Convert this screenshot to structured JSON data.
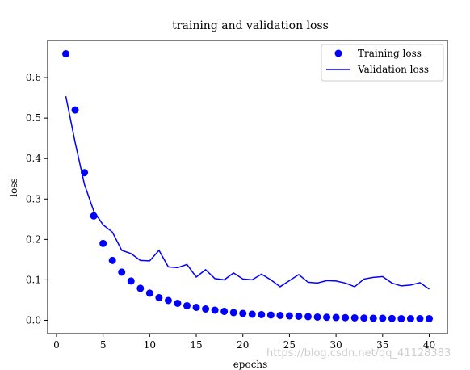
{
  "chart_data": {
    "type": "line",
    "title": "training and validation loss",
    "xlabel": "epochs",
    "ylabel": "loss",
    "xlim": [
      -0.95,
      41.95
    ],
    "ylim": [
      -0.033,
      0.692
    ],
    "x_ticks": [
      0,
      5,
      10,
      15,
      20,
      25,
      30,
      35,
      40
    ],
    "y_ticks": [
      0.0,
      0.1,
      0.2,
      0.3,
      0.4,
      0.5,
      0.6
    ],
    "grid": false,
    "legend_position": "top-right",
    "x": [
      1,
      2,
      3,
      4,
      5,
      6,
      7,
      8,
      9,
      10,
      11,
      12,
      13,
      14,
      15,
      16,
      17,
      18,
      19,
      20,
      21,
      22,
      23,
      24,
      25,
      26,
      27,
      28,
      29,
      30,
      31,
      32,
      33,
      34,
      35,
      36,
      37,
      38,
      39,
      40
    ],
    "series": [
      {
        "name": "Training loss",
        "style": "points",
        "color": "#0000ff",
        "values": [
          0.659,
          0.52,
          0.365,
          0.258,
          0.19,
          0.148,
          0.119,
          0.097,
          0.079,
          0.067,
          0.056,
          0.049,
          0.042,
          0.036,
          0.032,
          0.028,
          0.025,
          0.022,
          0.019,
          0.017,
          0.015,
          0.014,
          0.013,
          0.012,
          0.011,
          0.01,
          0.009,
          0.008,
          0.0075,
          0.007,
          0.0065,
          0.006,
          0.0055,
          0.005,
          0.005,
          0.0045,
          0.004,
          0.004,
          0.004,
          0.004
        ]
      },
      {
        "name": "Validation loss",
        "style": "line",
        "color": "#0000ff",
        "values": [
          0.554,
          0.44,
          0.336,
          0.27,
          0.236,
          0.218,
          0.173,
          0.165,
          0.148,
          0.147,
          0.173,
          0.132,
          0.13,
          0.138,
          0.107,
          0.125,
          0.103,
          0.1,
          0.117,
          0.102,
          0.1,
          0.114,
          0.1,
          0.083,
          0.098,
          0.113,
          0.094,
          0.092,
          0.098,
          0.097,
          0.092,
          0.083,
          0.102,
          0.106,
          0.108,
          0.092,
          0.085,
          0.087,
          0.093,
          0.077
        ]
      }
    ]
  },
  "watermark": "https://blog.csdn.net/qq_41128383"
}
